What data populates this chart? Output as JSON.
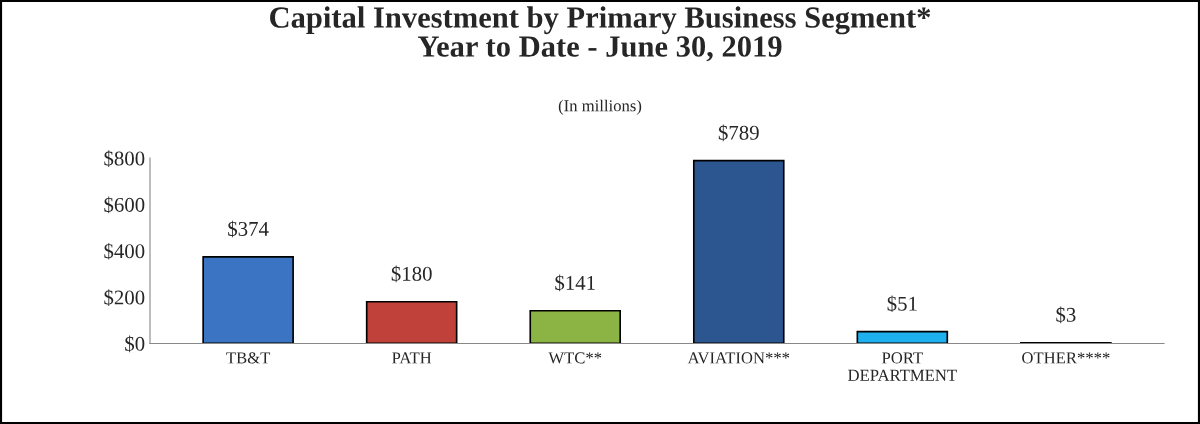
{
  "chart_data": {
    "type": "bar",
    "title": "Capital Investment by Primary Business Segment*\nYear to Date - June 30, 2019",
    "subtitle": "(In millions)",
    "categories": [
      "TB&T",
      "PATH",
      "WTC**",
      "AVIATION***",
      "PORT\nDEPARTMENT",
      "OTHER****"
    ],
    "values": [
      374,
      180,
      141,
      789,
      51,
      3
    ],
    "colors": [
      "#3a74c2",
      "#c0403a",
      "#8cb444",
      "#2b5690",
      "#1fb0ee",
      "#8a8a8a"
    ],
    "value_labels": [
      "$374",
      "$180",
      "$141",
      "$789",
      "$51",
      "$3"
    ],
    "ylim": [
      0,
      800
    ],
    "yticks": [
      {
        "value": 0,
        "label": "$0"
      },
      {
        "value": 200,
        "label": "$200"
      },
      {
        "value": 400,
        "label": "$400"
      },
      {
        "value": 600,
        "label": "$600"
      },
      {
        "value": 800,
        "label": "$800"
      }
    ],
    "grid": false,
    "legend": false
  }
}
